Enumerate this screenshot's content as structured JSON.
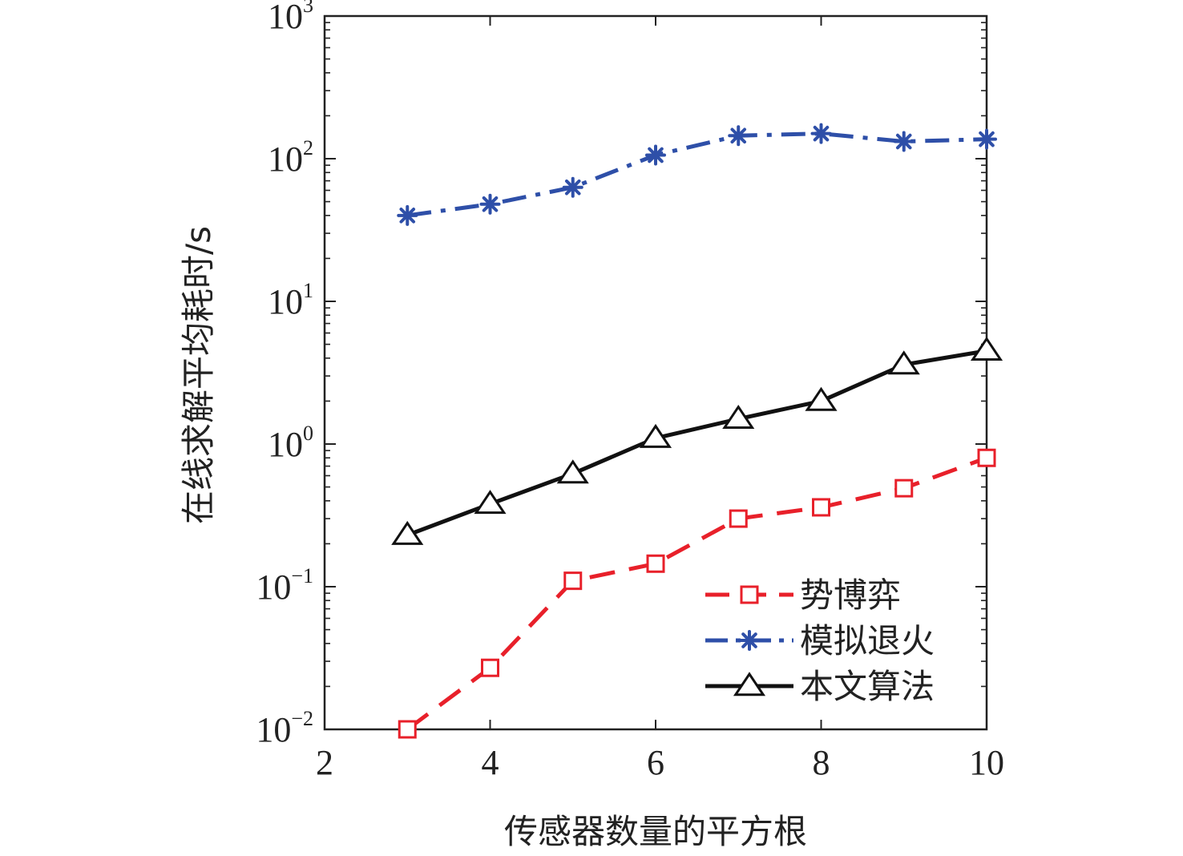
{
  "chart_data": {
    "type": "line",
    "xlabel": "传感器数量的平方根",
    "ylabel": "在线求解平均耗时/s",
    "xlim": [
      2,
      10
    ],
    "ylim": [
      0.01,
      1000
    ],
    "yscale": "log",
    "xticks": [
      {
        "value": 2,
        "label": "2"
      },
      {
        "value": 4,
        "label": "4"
      },
      {
        "value": 6,
        "label": "6"
      },
      {
        "value": 8,
        "label": "8"
      },
      {
        "value": 10,
        "label": "10"
      }
    ],
    "yticks": [
      {
        "value": 0.01,
        "base": "10",
        "exp": "−2"
      },
      {
        "value": 0.1,
        "base": "10",
        "exp": "−1"
      },
      {
        "value": 1,
        "base": "10",
        "exp": "0"
      },
      {
        "value": 10,
        "base": "10",
        "exp": "1"
      },
      {
        "value": 100,
        "base": "10",
        "exp": "2"
      },
      {
        "value": 1000,
        "base": "10",
        "exp": "3"
      }
    ],
    "grid": false,
    "legend_position": "bottom-right",
    "series": [
      {
        "name": "势博弈",
        "color": "#e8202a",
        "marker": "square",
        "dash": "dashed",
        "x": [
          3,
          4,
          5,
          6,
          7,
          8,
          9,
          10
        ],
        "y": [
          0.01,
          0.027,
          0.11,
          0.145,
          0.3,
          0.36,
          0.49,
          0.8
        ]
      },
      {
        "name": "模拟退火",
        "color": "#2e4fa8",
        "marker": "asterisk",
        "dash": "dashdot",
        "x": [
          3,
          4,
          5,
          6,
          7,
          8,
          9,
          10
        ],
        "y": [
          40,
          48,
          63,
          106,
          145,
          150,
          132,
          137
        ]
      },
      {
        "name": "本文算法",
        "color": "#111111",
        "marker": "triangle",
        "dash": "solid",
        "x": [
          3,
          4,
          5,
          6,
          7,
          8,
          9,
          10
        ],
        "y": [
          0.23,
          0.38,
          0.62,
          1.1,
          1.5,
          2.0,
          3.6,
          4.5
        ]
      }
    ]
  }
}
